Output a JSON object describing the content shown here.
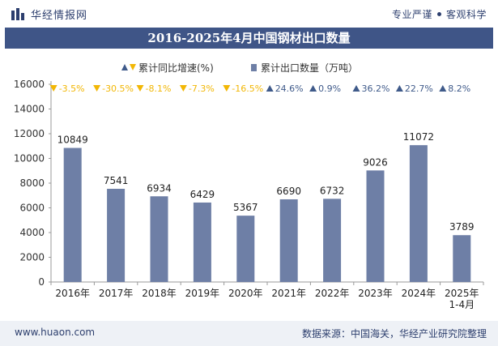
{
  "header": {
    "brand": "华经情报网",
    "tagline_left": "专业严谨",
    "tagline_right": "客观科学"
  },
  "colors": {
    "bar": "#6e7fa6",
    "title_bg": "#3f5587",
    "up": "#3f5a8a",
    "down": "#f2b705"
  },
  "footer": {
    "url": "www.huaon.com",
    "source": "数据来源：中国海关，华经产业研究院整理"
  },
  "chart_data": {
    "type": "bar",
    "title": "2016-2025年4月中国钢材出口数量",
    "xlabel": "",
    "ylabel": "",
    "ylim": [
      0,
      16000
    ],
    "yticks": [
      0,
      2000,
      4000,
      6000,
      8000,
      10000,
      12000,
      14000,
      16000
    ],
    "categories": [
      "2016年",
      "2017年",
      "2018年",
      "2019年",
      "2020年",
      "2021年",
      "2022年",
      "2023年",
      "2024年",
      "2025年\n1-4月"
    ],
    "series": [
      {
        "name": "累计出口数量（万吨）",
        "values": [
          10849,
          7541,
          6934,
          6429,
          5367,
          6690,
          6732,
          9026,
          11072,
          3789
        ]
      }
    ],
    "growth": {
      "name": "累计同比增速(%)",
      "labels": [
        "-3.5%",
        "-30.5%",
        "-8.1%",
        "-7.3%",
        "-16.5%",
        "24.6%",
        "0.9%",
        "36.2%",
        "22.7%",
        "8.2%"
      ],
      "values": [
        -3.5,
        -30.5,
        -8.1,
        -7.3,
        -16.5,
        24.6,
        0.9,
        36.2,
        22.7,
        8.2
      ]
    },
    "legend": {
      "position": "top-center"
    }
  }
}
